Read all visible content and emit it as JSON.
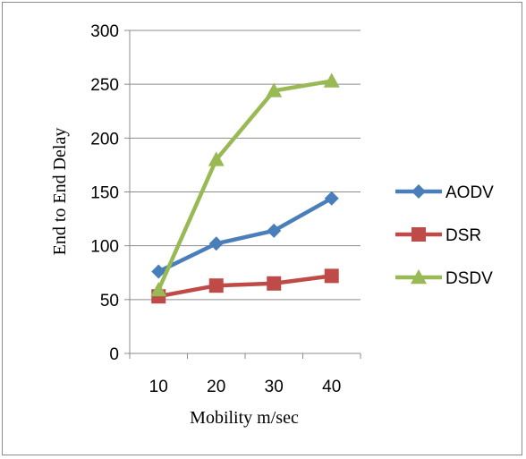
{
  "chart_data": {
    "type": "line",
    "categories": [
      "10",
      "20",
      "30",
      "40"
    ],
    "series": [
      {
        "name": "AODV",
        "values": [
          76,
          102,
          114,
          144
        ],
        "color": "#4a7ebb",
        "marker": "diamond"
      },
      {
        "name": "DSR",
        "values": [
          53,
          63,
          65,
          72
        ],
        "color": "#be4b48",
        "marker": "square"
      },
      {
        "name": "DSDV",
        "values": [
          59,
          180,
          244,
          253
        ],
        "color": "#98b954",
        "marker": "triangle"
      }
    ],
    "xlabel": "Mobility m/sec",
    "ylabel": "End to End Delay",
    "ylim": [
      0,
      300
    ],
    "yticks": [
      0,
      50,
      100,
      150,
      200,
      250,
      300
    ],
    "grid": "horizontal",
    "legend": "right"
  }
}
